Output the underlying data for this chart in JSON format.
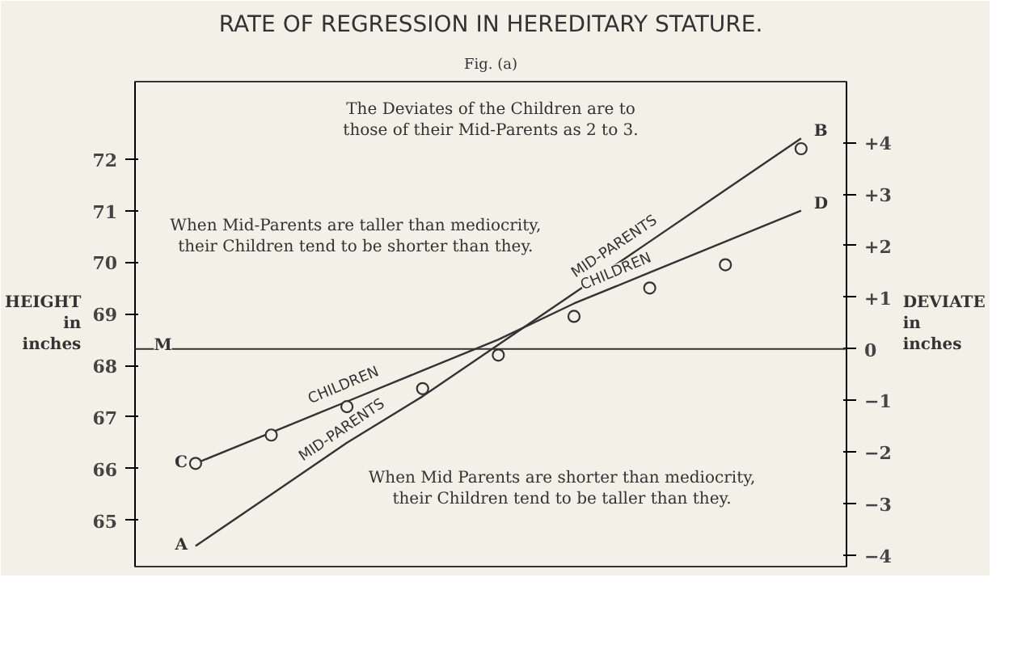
{
  "chart_data": {
    "type": "line",
    "title": "RATE OF REGRESSION IN HEREDITARY STATURE.",
    "subtitle": "Fig. (a)",
    "ylabel": "HEIGHT in inches",
    "y2label": "DEVIATE in inches",
    "annotations": [
      "The Deviates of the Children are to those of their Mid-Parents as 2 to 3.",
      "When Mid-Parents are taller than mediocrity, their Children tend to be shorter than they.",
      "When Mid Parents are shorter than mediocrity, their Children tend to be taller than they."
    ],
    "categories": [
      null,
      null,
      null,
      null,
      null,
      null,
      null,
      null,
      null
    ],
    "series": [
      {
        "name": "MID-PARENTS",
        "color": "#333333",
        "values": [
          64.5,
          65.5,
          66.5,
          67.4,
          68.4,
          69.4,
          70.4,
          71.4,
          72.4
        ],
        "value_labels": [
          "A",
          null,
          null,
          null,
          null,
          null,
          null,
          null,
          "B"
        ]
      },
      {
        "name": "CHILDREN",
        "color": "#333333",
        "values": [
          66.1,
          66.7,
          67.3,
          67.9,
          68.5,
          69.2,
          69.8,
          70.4,
          71.0
        ],
        "value_labels": [
          "C",
          null,
          null,
          null,
          null,
          null,
          null,
          null,
          "D"
        ]
      },
      {
        "type": "scatter",
        "color": "#333333",
        "marker": "circle",
        "values": [
          66.1,
          66.65,
          67.2,
          67.55,
          68.2,
          68.95,
          69.5,
          69.95,
          72.2
        ]
      }
    ],
    "ylim": [
      64.1,
      73.5
    ],
    "yticks": [
      65,
      66,
      67,
      68,
      69,
      70,
      71,
      72
    ],
    "y2lim": [
      -4.22,
      5.18
    ],
    "y2ticks": [
      {
        "value": 4,
        "label": "+4"
      },
      {
        "value": 3,
        "label": "+3"
      },
      {
        "value": 2,
        "label": "+2"
      },
      {
        "value": 1,
        "label": "+1"
      },
      0,
      -1,
      -2,
      -3,
      -4
    ],
    "ref_lines": [
      {
        "axis": "y2",
        "value": 0,
        "label": "M",
        "color": "#333333",
        "line_style": "solid"
      }
    ],
    "tick_labels": "y",
    "grid": false,
    "legend": false,
    "line_style": "solid"
  }
}
